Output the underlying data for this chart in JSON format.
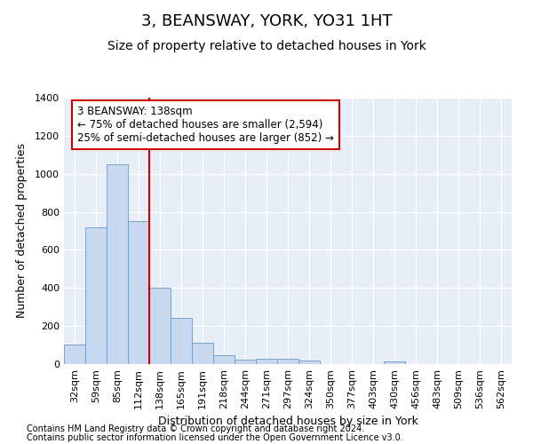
{
  "title": "3, BEANSWAY, YORK, YO31 1HT",
  "subtitle": "Size of property relative to detached houses in York",
  "xlabel": "Distribution of detached houses by size in York",
  "ylabel": "Number of detached properties",
  "footnote1": "Contains HM Land Registry data © Crown copyright and database right 2024.",
  "footnote2": "Contains public sector information licensed under the Open Government Licence v3.0.",
  "annotation_line1": "3 BEANSWAY: 138sqm",
  "annotation_line2": "← 75% of detached houses are smaller (2,594)",
  "annotation_line3": "25% of semi-detached houses are larger (852) →",
  "bar_color": "#c8d9ef",
  "bar_edge_color": "#6699cc",
  "vline_color": "#cc0000",
  "annotation_box_facecolor": "#ffffff",
  "annotation_box_edgecolor": "#cc0000",
  "background_color": "#e8eef8",
  "categories": [
    "32sqm",
    "59sqm",
    "85sqm",
    "112sqm",
    "138sqm",
    "165sqm",
    "191sqm",
    "218sqm",
    "244sqm",
    "271sqm",
    "297sqm",
    "324sqm",
    "350sqm",
    "377sqm",
    "403sqm",
    "430sqm",
    "456sqm",
    "483sqm",
    "509sqm",
    "536sqm",
    "562sqm"
  ],
  "values": [
    105,
    720,
    1050,
    750,
    400,
    245,
    110,
    47,
    25,
    30,
    28,
    20,
    0,
    0,
    0,
    15,
    0,
    0,
    0,
    0,
    0
  ],
  "ylim": [
    0,
    1400
  ],
  "yticks": [
    0,
    200,
    400,
    600,
    800,
    1000,
    1200,
    1400
  ],
  "title_fontsize": 13,
  "subtitle_fontsize": 10,
  "axis_label_fontsize": 9,
  "tick_fontsize": 8,
  "footnote_fontsize": 7
}
